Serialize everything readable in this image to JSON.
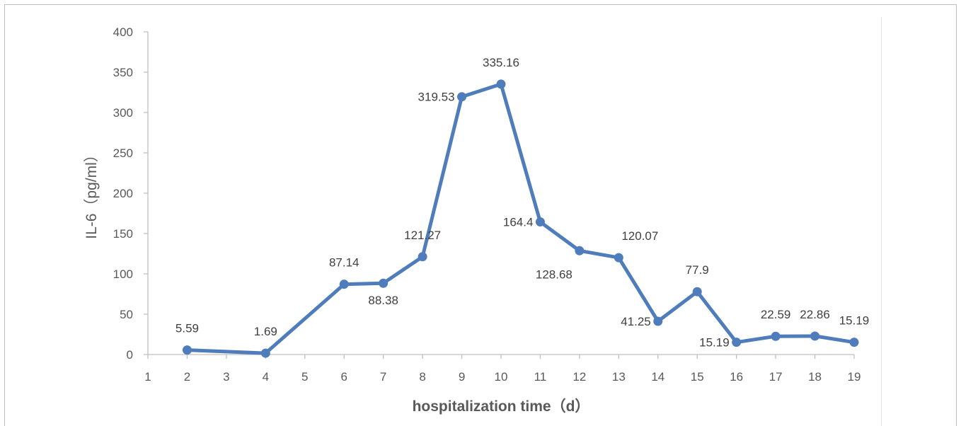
{
  "chart_data": {
    "type": "line",
    "title": "",
    "xlabel": "hospitalization time（d）",
    "ylabel": "IL-6（pg/ml）",
    "x_ticks": [
      1,
      2,
      3,
      4,
      5,
      6,
      7,
      8,
      9,
      10,
      11,
      12,
      13,
      14,
      15,
      16,
      17,
      18,
      19
    ],
    "y_ticks": [
      0,
      50,
      100,
      150,
      200,
      250,
      300,
      350,
      400
    ],
    "xlim": [
      1,
      19
    ],
    "ylim": [
      0,
      400
    ],
    "grid": false,
    "line_color": "#4f7dbc",
    "series": [
      {
        "points": [
          {
            "x": 2,
            "y": 5.59,
            "label": "5.59",
            "pos": "above"
          },
          {
            "x": 4,
            "y": 1.69,
            "label": "1.69",
            "pos": "above"
          },
          {
            "x": 6,
            "y": 87.14,
            "label": "87.14",
            "pos": "above"
          },
          {
            "x": 7,
            "y": 88.38,
            "label": "88.38",
            "pos": "below"
          },
          {
            "x": 8,
            "y": 121.27,
            "label": "121.27",
            "pos": "above"
          },
          {
            "x": 9,
            "y": 319.53,
            "label": "319.53",
            "pos": "left"
          },
          {
            "x": 10,
            "y": 335.16,
            "label": "335.16",
            "pos": "above"
          },
          {
            "x": 11,
            "y": 164.4,
            "label": "164.4",
            "pos": "left"
          },
          {
            "x": 12,
            "y": 128.68,
            "label": "128.68",
            "pos": "belowleft"
          },
          {
            "x": 13,
            "y": 120.07,
            "label": "120.07",
            "pos": "aboveright"
          },
          {
            "x": 14,
            "y": 41.25,
            "label": "41.25",
            "pos": "left"
          },
          {
            "x": 15,
            "y": 77.9,
            "label": "77.9",
            "pos": "above"
          },
          {
            "x": 16,
            "y": 15.19,
            "label": "15.19",
            "pos": "left"
          },
          {
            "x": 17,
            "y": 22.59,
            "label": "22.59",
            "pos": "above"
          },
          {
            "x": 18,
            "y": 22.86,
            "label": "22.86",
            "pos": "above"
          },
          {
            "x": 19,
            "y": 15.19,
            "label": "15.19",
            "pos": "above"
          }
        ]
      }
    ]
  }
}
